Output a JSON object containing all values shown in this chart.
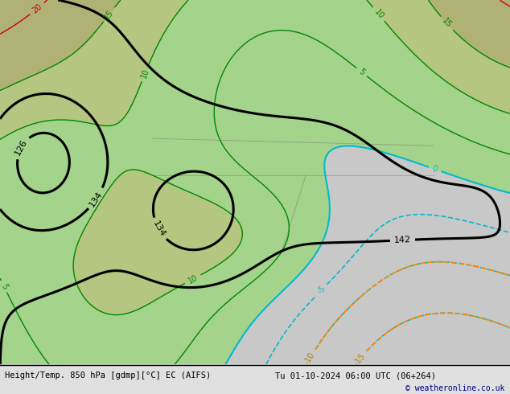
{
  "title_left": "Height/Temp. 850 hPa [gdmp][°C] EC (AIFS)",
  "title_right": "Tu 01-10-2024 06:00 UTC (06+264)",
  "copyright": "© weatheronline.co.uk",
  "bg_color": "#e0e0e0",
  "figsize": [
    6.34,
    4.9
  ],
  "dpi": 100
}
